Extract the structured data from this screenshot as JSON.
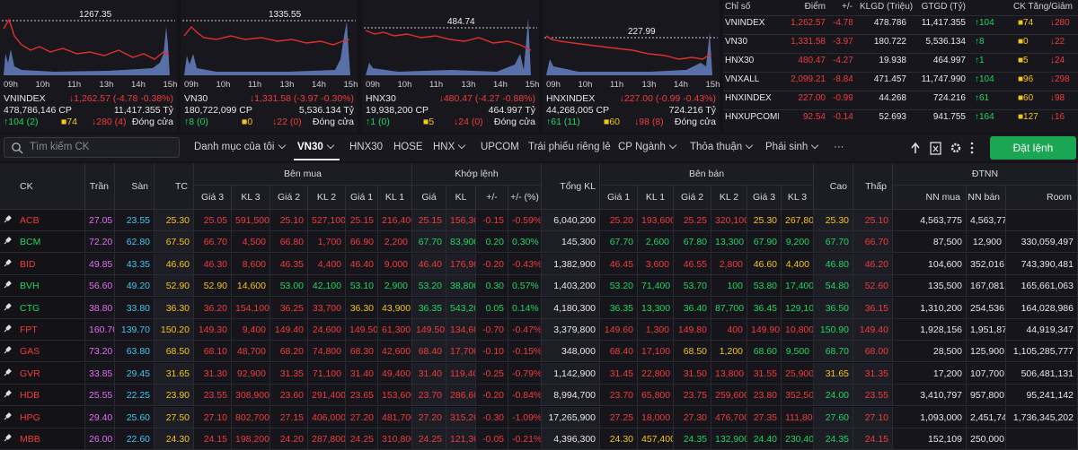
{
  "index_charts": [
    {
      "peak": "1267.35",
      "name": "VNINDEX",
      "change": "↓1,262.57 (-4.78 -0.38%)",
      "volume": "478,786,146 CP",
      "value": "11,417.355 Tỷ",
      "up": "↑104 (2)",
      "flat": "■74",
      "down": "↓280 (4)",
      "status": "Đóng cửa"
    },
    {
      "peak": "1335.55",
      "name": "VN30",
      "change": "↓1,331.58 (-3.97 -0.30%)",
      "volume": "180,722,099 CP",
      "value": "5,536.134 Tỷ",
      "up": "↑8 (0)",
      "flat": "■0",
      "down": "↓22 (0)",
      "status": "Đóng cửa"
    },
    {
      "peak": "484.74",
      "name": "HNX30",
      "change": "↓480.47 (-4.27 -0.88%)",
      "volume": "19,938,200 CP",
      "value": "464.997 Tỷ",
      "up": "↑1 (0)",
      "flat": "■5",
      "down": "↓24 (0)",
      "status": "Đóng cửa"
    },
    {
      "peak": "227.99",
      "name": "HNXINDEX",
      "change": "↓227.00 (-0.99 -0.43%)",
      "volume": "44,268,005 CP",
      "value": "724.216 Tỷ",
      "up": "↑61 (11)",
      "flat": "■60",
      "down": "↓98 (8)",
      "status": "Đóng cửa"
    }
  ],
  "time_labels": [
    "09h",
    "10h",
    "11h",
    "13h",
    "14h",
    "15h"
  ],
  "index_table": {
    "headers": [
      "Chỉ số",
      "Điểm",
      "+/-",
      "KLGD (Triệu)",
      "GTGD (Tỷ)",
      "CK Tăng/Giảm"
    ],
    "rows": [
      [
        "VNINDEX",
        "1,262.57",
        "-4.78",
        "478.786",
        "11,417.355",
        "↑104",
        "■74",
        "↓280"
      ],
      [
        "VN30",
        "1,331.58",
        "-3.97",
        "180.722",
        "5,536.134",
        "↑8",
        "■0",
        "↓22"
      ],
      [
        "HNX30",
        "480.47",
        "-4.27",
        "19.938",
        "464.997",
        "↑1",
        "■5",
        "↓24"
      ],
      [
        "VNXALL",
        "2,099.21",
        "-8.84",
        "471.457",
        "11,747.990",
        "↑104",
        "■96",
        "↓298"
      ],
      [
        "HNXINDEX",
        "227.00",
        "-0.99",
        "44.268",
        "724.216",
        "↑61",
        "■60",
        "↓98"
      ],
      [
        "HNXUPCOMINDI",
        "92.54",
        "-0.14",
        "52.693",
        "941.755",
        "↑164",
        "■127",
        "↓16"
      ]
    ]
  },
  "toolbar": {
    "search_placeholder": "Tìm kiếm CK",
    "tabs": [
      "Danh mục của tôi",
      "VN30",
      "HNX30",
      "HOSE",
      "HNX",
      "UPCOM",
      "Trái phiếu riêng lẻ",
      "CP Ngành",
      "Thỏa thuận",
      "Phái sinh",
      "···"
    ],
    "active_tab": 1,
    "order_button": "Đặt lệnh"
  },
  "board": {
    "group_headers": [
      {
        "label": "Bên mua",
        "from": 4,
        "to": 9
      },
      {
        "label": "Khớp lệnh",
        "from": 10,
        "to": 13
      },
      {
        "label": "Bên bán",
        "from": 15,
        "to": 20
      },
      {
        "label": "ĐTNN",
        "from": 23,
        "to": 25
      }
    ],
    "headers": [
      "CK",
      "Trần",
      "Sàn",
      "TC",
      "Giá 3",
      "KL 3",
      "Giá 2",
      "KL 2",
      "Giá 1",
      "KL 1",
      "Giá",
      "KL",
      "+/-",
      "+/- (%)",
      "Tổng KL",
      "Giá 1",
      "KL 1",
      "Giá 2",
      "KL 2",
      "Giá 3",
      "KL 3",
      "Cao",
      "Thấp",
      "NN mua",
      "NN bán",
      "Room"
    ],
    "rows": [
      [
        "ACB",
        "27.05",
        "23.55",
        "25.30",
        "25.05",
        "591,500",
        "25.10",
        "527,100",
        "25.15",
        "216,400",
        "25.15",
        "156,300",
        "-0.15",
        "-0.59%",
        "6,040,200",
        "25.20",
        "193,600",
        "25.25",
        "320,100",
        "25.30",
        "267,800",
        "25.30",
        "25.10",
        "4,563,775",
        "4,563,775",
        null
      ],
      [
        "BCM",
        "72.20",
        "62.80",
        "67.50",
        "66.70",
        "4,500",
        "66.80",
        "1,700",
        "66.90",
        "2,200",
        "67.70",
        "83,900",
        "0.20",
        "0.30%",
        "145,300",
        "67.70",
        "2,600",
        "67.80",
        "13,300",
        "67.90",
        "9,200",
        "67.70",
        "66.70",
        "87,500",
        "12,900",
        "330,059,497"
      ],
      [
        "BID",
        "49.85",
        "43.35",
        "46.60",
        "46.30",
        "8,600",
        "46.35",
        "4,400",
        "46.40",
        "9,000",
        "46.40",
        "176,900",
        "-0.20",
        "-0.43%",
        "1,382,900",
        "46.45",
        "3,600",
        "46.55",
        "2,800",
        "46.60",
        "4,400",
        "46.80",
        "46.20",
        "104,600",
        "352,016",
        "743,390,481"
      ],
      [
        "BVH",
        "56.60",
        "49.20",
        "52.90",
        "52.90",
        "14,600",
        "53.00",
        "42,100",
        "53.10",
        "2,900",
        "53.20",
        "38,800",
        "0.30",
        "0.57%",
        "1,403,200",
        "53.20",
        "71,400",
        "53.70",
        "100",
        "53.80",
        "17,400",
        "54.80",
        "52.60",
        "135,500",
        "167,081",
        "165,661,063"
      ],
      [
        "CTG",
        "38.80",
        "33.80",
        "36.30",
        "36.20",
        "154,100",
        "36.25",
        "33,700",
        "36.30",
        "43,900",
        "36.35",
        "543,200",
        "0.05",
        "0.14%",
        "4,180,300",
        "36.35",
        "13,300",
        "36.40",
        "87,700",
        "36.45",
        "129,100",
        "36.50",
        "36.15",
        "1,310,200",
        "254,536",
        "164,028,986"
      ],
      [
        "FPT",
        "160.70",
        "139.70",
        "150.20",
        "149.30",
        "9,400",
        "149.40",
        "24,600",
        "149.50",
        "61,300",
        "149.50",
        "134,600",
        "-0.70",
        "-0.47%",
        "3,379,800",
        "149.60",
        "1,300",
        "149.80",
        "400",
        "149.90",
        "10,800",
        "150.90",
        "149.40",
        "1,928,156",
        "1,951,873",
        "44,919,347"
      ],
      [
        "GAS",
        "73.20",
        "63.80",
        "68.50",
        "68.10",
        "48,700",
        "68.20",
        "74,800",
        "68.30",
        "42,600",
        "68.40",
        "17,700",
        "-0.10",
        "-0.15%",
        "348,000",
        "68.40",
        "17,100",
        "68.50",
        "1,200",
        "68.60",
        "9,500",
        "68.70",
        "68.00",
        "28,500",
        "125,900",
        "1,105,285,777"
      ],
      [
        "GVR",
        "33.85",
        "29.45",
        "31.65",
        "31.30",
        "92,900",
        "31.35",
        "71,100",
        "31.40",
        "49,400",
        "31.40",
        "119,400",
        "-0.25",
        "-0.79%",
        "1,142,900",
        "31.45",
        "22,800",
        "31.50",
        "13,800",
        "31.55",
        "25,900",
        "31.65",
        "31.35",
        "17,200",
        "107,700",
        "506,481,131"
      ],
      [
        "HDB",
        "25.55",
        "22.25",
        "23.90",
        "23.55",
        "308,900",
        "23.60",
        "291,400",
        "23.65",
        "153,600",
        "23.70",
        "286,600",
        "-0.20",
        "-0.84%",
        "8,994,700",
        "23.70",
        "65,800",
        "23.75",
        "259,600",
        "23.80",
        "352,500",
        "24.00",
        "23.55",
        "3,410,797",
        "957,800",
        "95,241,142"
      ],
      [
        "HPG",
        "29.40",
        "25.60",
        "27.50",
        "27.10",
        "802,700",
        "27.15",
        "406,000",
        "27.20",
        "481,700",
        "27.20",
        "315,200",
        "-0.30",
        "-1.09%",
        "17,265,900",
        "27.25",
        "18,000",
        "27.30",
        "476,700",
        "27.35",
        "111,800",
        "27.60",
        "27.10",
        "1,093,000",
        "2,451,743",
        "1,736,345,202"
      ],
      [
        "MBB",
        "26.00",
        "22.60",
        "24.30",
        "24.15",
        "198,200",
        "24.20",
        "287,800",
        "24.25",
        "310,800",
        "24.25",
        "121,300",
        "-0.05",
        "-0.21%",
        "4,396,300",
        "24.30",
        "457,400",
        "24.35",
        "132,900",
        "24.40",
        "230,400",
        "24.35",
        "24.15",
        "152,109",
        "250,000",
        null
      ]
    ]
  }
}
